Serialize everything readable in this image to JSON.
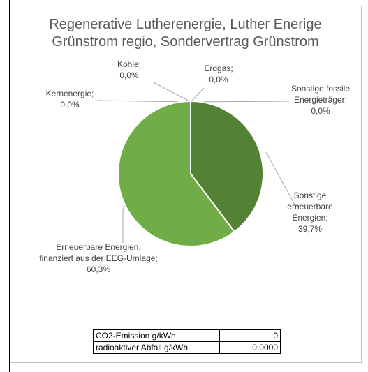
{
  "chart_data": {
    "type": "pie",
    "title_lines": [
      "Regenerative Lutherenergie, Luther Enerige",
      "Grünstrom regio, Sondervertrag Grünstrom"
    ],
    "slices": [
      {
        "label_lines": [
          "Sonstige",
          "erneuerbare",
          "Energien;",
          "39,7%"
        ],
        "value": 39.7,
        "color": "#548235"
      },
      {
        "label_lines": [
          "Erneuerbare Energien,",
          "finanziert aus der EEG-Umlage;",
          "60,3%"
        ],
        "value": 60.3,
        "color": "#70ad47"
      },
      {
        "label_lines": [
          "Kernenergie;",
          "0,0%"
        ],
        "value": 0.0,
        "color": "#7f7f7f"
      },
      {
        "label_lines": [
          "Kohle;",
          "0,0%"
        ],
        "value": 0.0,
        "color": "#7f7f7f"
      },
      {
        "label_lines": [
          "Erdgas;",
          "0,0%"
        ],
        "value": 0.0,
        "color": "#7f7f7f"
      },
      {
        "label_lines": [
          "Sonstige fossile",
          "Energieträger;",
          "0,0%"
        ],
        "value": 0.0,
        "color": "#7f7f7f"
      }
    ],
    "leader_line_color": "#a6a6a6"
  },
  "info_table": [
    {
      "name": "CO2-Emission g/kWh",
      "value": "0"
    },
    {
      "name": "radioaktiver Abfall g/kWh",
      "value": "0,0000"
    }
  ]
}
